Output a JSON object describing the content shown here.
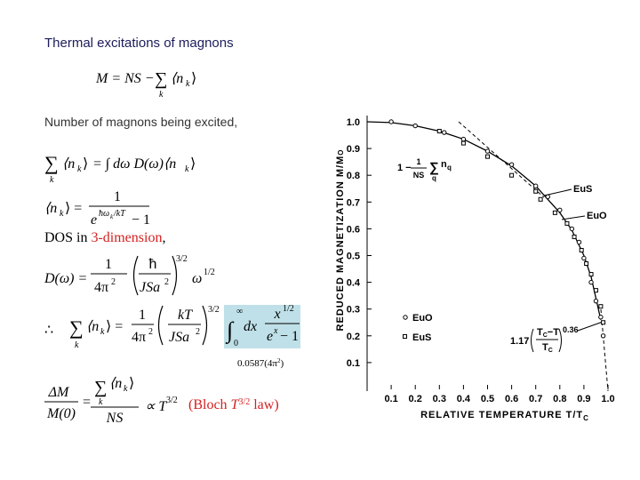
{
  "title": "Thermal excitations of magnons",
  "eq1": [
    "M = NS −",
    "∑",
    "k",
    "⟨n",
    "k",
    "⟩"
  ],
  "intro": "Number of magnons being excited,",
  "eq2": [
    "∑",
    "k",
    "⟨n",
    "k",
    "⟩",
    "= ∫ dω D(ω)⟨n",
    "k",
    "⟩"
  ],
  "eq3": [
    "⟨n",
    "k",
    "⟩ =",
    "1",
    "e",
    "ħω",
    "k",
    "/kT",
    "− 1"
  ],
  "dos": [
    "DOS in ",
    "3-dimension",
    ","
  ],
  "eq4": [
    "D(ω) =",
    "1",
    "4π",
    "2",
    "ħ",
    "JSa",
    "2",
    "3/2",
    "ω",
    "1/2"
  ],
  "eq5": [
    "∴",
    "∑",
    "k",
    "⟨n",
    "k",
    "⟩ =",
    "1",
    "4π",
    "2",
    "kT",
    "JSa",
    "2",
    "3/2",
    "∫",
    "0",
    "∞",
    "dx",
    "x",
    "1/2",
    "e",
    "x",
    "− 1"
  ],
  "eq5note": [
    "0.0587(4π",
    "2",
    ")"
  ],
  "eq6": [
    "ΔM",
    "M(0)",
    "=",
    "∑",
    "k",
    "⟨n",
    "k",
    "⟩",
    "NS",
    "∝ T",
    "3/2",
    "(Bloch ",
    "T",
    "3/2",
    " law)"
  ],
  "figure": {
    "ylabel": [
      "REDUCED MAGNETIZATION M/M",
      "O"
    ],
    "xlabel": [
      "RELATIVE TEMPERATURE T/T",
      "C"
    ],
    "xlim": [
      0,
      1.05
    ],
    "ylim": [
      0,
      1.0
    ],
    "xticks": [
      0.1,
      0.2,
      0.3,
      0.4,
      0.5,
      0.6,
      0.7,
      0.8,
      0.9,
      {
        "value": 1,
        "label": "1.0"
      }
    ],
    "yticks": [
      0.1,
      0.2,
      0.3,
      0.4,
      0.5,
      0.6,
      0.7,
      0.8,
      0.9,
      {
        "value": 1,
        "label": "1.0"
      }
    ],
    "euo": {
      "name": "EuO",
      "t": [
        0.1,
        0.2,
        0.32,
        0.4,
        0.5,
        0.6,
        0.7,
        0.75,
        0.8,
        0.85,
        0.88,
        0.9,
        0.93,
        0.95,
        0.97,
        0.98
      ],
      "m": [
        1.0,
        0.985,
        0.96,
        0.935,
        0.89,
        0.84,
        0.76,
        0.72,
        0.67,
        0.6,
        0.55,
        0.49,
        0.4,
        0.33,
        0.27,
        0.2
      ]
    },
    "eus": {
      "name": "EuS",
      "t": [
        0.3,
        0.4,
        0.5,
        0.6,
        0.7,
        0.72,
        0.78,
        0.83,
        0.86,
        0.89,
        0.91,
        0.93,
        0.95,
        0.97,
        0.98
      ],
      "m": [
        0.965,
        0.92,
        0.87,
        0.8,
        0.74,
        0.71,
        0.66,
        0.62,
        0.57,
        0.52,
        0.47,
        0.43,
        0.37,
        0.31,
        0.25
      ]
    },
    "curve": {
      "t": [
        0,
        0.1,
        0.2,
        0.3,
        0.4,
        0.5,
        0.6,
        0.7,
        0.8,
        0.85,
        0.9,
        0.93,
        0.95,
        0.97
      ],
      "m": [
        1,
        0.997,
        0.985,
        0.965,
        0.935,
        0.89,
        0.835,
        0.76,
        0.66,
        0.595,
        0.5,
        0.42,
        0.34,
        0.26
      ]
    },
    "label_eus": "EuS",
    "label_euo": "EuO",
    "spinwave": [
      "1 −",
      "1",
      "NS",
      "∑",
      "q",
      "n",
      "q"
    ],
    "powerlaw": [
      "1.17",
      "T",
      "C",
      "−T",
      "T",
      "C",
      "0.36"
    ]
  }
}
